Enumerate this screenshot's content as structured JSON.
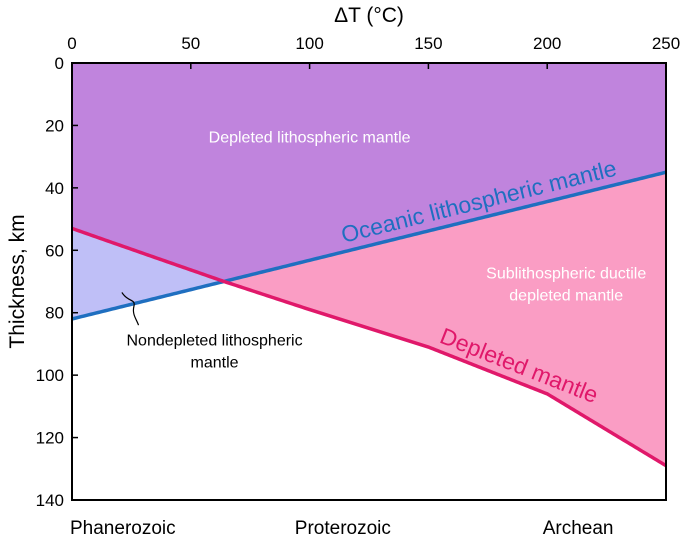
{
  "chart_data": {
    "type": "area",
    "xlabel": "ΔT (°C)",
    "ylabel": "Thickness, km",
    "xlim": [
      0,
      250
    ],
    "ylim": [
      140,
      0
    ],
    "y_inverted": true,
    "x_axis_position": "top",
    "x_ticks": [
      0,
      50,
      100,
      150,
      200,
      250
    ],
    "y_ticks": [
      0,
      20,
      40,
      60,
      80,
      100,
      120,
      140
    ],
    "grid": false,
    "lines": [
      {
        "name": "Oceanic lithospheric mantle",
        "color": "#1f6fc0",
        "x": [
          0,
          250
        ],
        "y": [
          82,
          35
        ]
      },
      {
        "name": "Depleted mantle",
        "color": "#e0186a",
        "x": [
          0,
          30,
          64,
          100,
          150,
          200,
          250
        ],
        "y": [
          53,
          61,
          70,
          79,
          91,
          106,
          129
        ]
      }
    ],
    "regions": [
      {
        "label": "Depleted lithospheric mantle",
        "color": "#c084dd"
      },
      {
        "label": "Nondepleted lithospheric\nmantle",
        "color": "#bfbff7"
      },
      {
        "label": "Sublithospheric ductile\ndepleted mantle",
        "color": "#fa9dc4"
      }
    ],
    "bottom_labels": [
      "Phanerozoic",
      "Proterozoic",
      "Archean"
    ]
  }
}
